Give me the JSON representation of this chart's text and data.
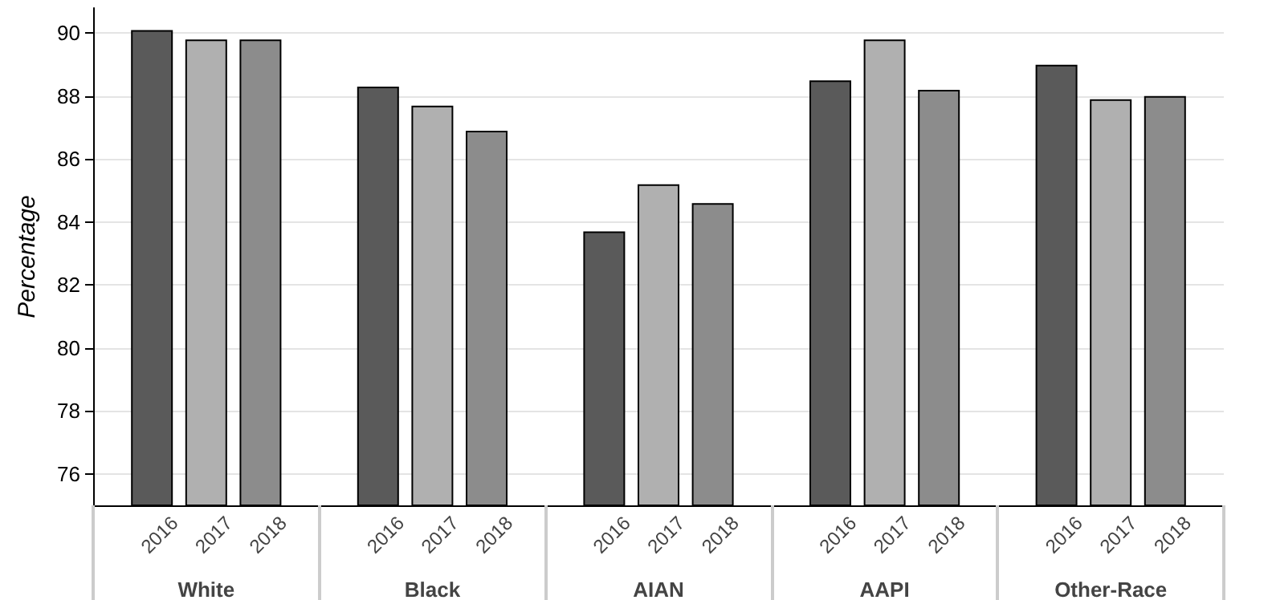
{
  "chart_data": {
    "type": "bar",
    "ylabel": "Percentage",
    "categories": [
      "White",
      "Black",
      "AIAN",
      "AAPI",
      "Other-Race"
    ],
    "series": [
      {
        "name": "2016",
        "color": "#5a5a5a",
        "values": [
          90.1,
          88.3,
          83.7,
          88.5,
          89.0
        ]
      },
      {
        "name": "2017",
        "color": "#b0b0b0",
        "values": [
          89.8,
          87.7,
          85.2,
          89.8,
          87.9
        ]
      },
      {
        "name": "2018",
        "color": "#8c8c8c",
        "values": [
          89.8,
          86.9,
          84.6,
          88.2,
          88.0
        ]
      }
    ],
    "ylim": [
      75,
      90.8
    ],
    "yticks": [
      76,
      78,
      80,
      82,
      84,
      86,
      88,
      90
    ],
    "grid": "y",
    "legend": false
  }
}
